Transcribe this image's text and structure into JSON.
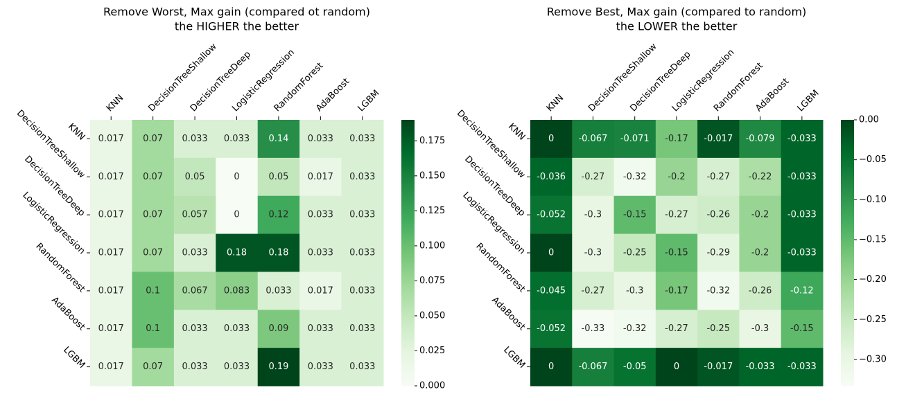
{
  "chart_data": [
    {
      "type": "heatmap",
      "title": "Remove Worst, Max gain (compared ot random)",
      "subtitle": "the HIGHER the better",
      "x_categories": [
        "KNN",
        "DecisionTreeShallow",
        "DecisionTreeDeep",
        "LogisticRegression",
        "RandomForest",
        "AdaBoost",
        "LGBM"
      ],
      "y_categories": [
        "KNN",
        "DecisionTreeShallow",
        "DecisionTreeDeep",
        "LogisticRegression",
        "RandomForest",
        "AdaBoost",
        "LGBM"
      ],
      "values": [
        [
          0.017,
          0.07,
          0.033,
          0.033,
          0.14,
          0.033,
          0.033
        ],
        [
          0.017,
          0.07,
          0.05,
          0,
          0.05,
          0.017,
          0.033
        ],
        [
          0.017,
          0.07,
          0.057,
          0,
          0.12,
          0.033,
          0.033
        ],
        [
          0.017,
          0.07,
          0.033,
          0.18,
          0.18,
          0.033,
          0.033
        ],
        [
          0.017,
          0.1,
          0.067,
          0.083,
          0.033,
          0.017,
          0.033
        ],
        [
          0.017,
          0.1,
          0.033,
          0.033,
          0.09,
          0.033,
          0.033
        ],
        [
          0.017,
          0.07,
          0.033,
          0.033,
          0.19,
          0.033,
          0.033
        ]
      ],
      "clim": [
        0,
        0.19
      ],
      "cticks": [
        {
          "value": 0,
          "label": "0.000"
        },
        {
          "value": 0.025,
          "label": "0.025"
        },
        {
          "value": 0.05,
          "label": "0.050"
        },
        {
          "value": 0.075,
          "label": "0.075"
        },
        {
          "value": 0.1,
          "label": "0.100"
        },
        {
          "value": 0.125,
          "label": "0.125"
        },
        {
          "value": 0.15,
          "label": "0.150"
        },
        {
          "value": 0.175,
          "label": "0.175"
        }
      ],
      "colormap": [
        "#f7fcf5",
        "#e5f5e0",
        "#c7e9c0",
        "#a1d99b",
        "#74c476",
        "#41ab5d",
        "#238b45",
        "#006d2c",
        "#00441b"
      ]
    },
    {
      "type": "heatmap",
      "title": "Remove Best, Max gain (compared to random)",
      "subtitle": "the LOWER the better",
      "x_categories": [
        "KNN",
        "DecisionTreeShallow",
        "DecisionTreeDeep",
        "LogisticRegression",
        "RandomForest",
        "AdaBoost",
        "LGBM"
      ],
      "y_categories": [
        "KNN",
        "DecisionTreeShallow",
        "DecisionTreeDeep",
        "LogisticRegression",
        "RandomForest",
        "AdaBoost",
        "LGBM"
      ],
      "values": [
        [
          0,
          -0.067,
          -0.071,
          -0.17,
          -0.017,
          -0.079,
          -0.033
        ],
        [
          -0.036,
          -0.27,
          -0.32,
          -0.2,
          -0.27,
          -0.22,
          -0.033
        ],
        [
          -0.052,
          -0.3,
          -0.15,
          -0.27,
          -0.26,
          -0.2,
          -0.033
        ],
        [
          0,
          -0.3,
          -0.25,
          -0.15,
          -0.29,
          -0.2,
          -0.033
        ],
        [
          -0.045,
          -0.27,
          -0.3,
          -0.17,
          -0.32,
          -0.26,
          -0.12
        ],
        [
          -0.052,
          -0.33,
          -0.32,
          -0.27,
          -0.25,
          -0.3,
          -0.15
        ],
        [
          0,
          -0.067,
          -0.05,
          0,
          -0.017,
          -0.033,
          -0.033
        ]
      ],
      "clim": [
        -0.333,
        0
      ],
      "cticks": [
        {
          "value": 0,
          "label": "0.00"
        },
        {
          "value": -0.05,
          "label": "−0.05"
        },
        {
          "value": -0.1,
          "label": "−0.10"
        },
        {
          "value": -0.15,
          "label": "−0.15"
        },
        {
          "value": -0.2,
          "label": "−0.20"
        },
        {
          "value": -0.25,
          "label": "−0.25"
        },
        {
          "value": -0.3,
          "label": "−0.30"
        }
      ],
      "colormap": [
        "#f7fcf5",
        "#e5f5e0",
        "#c7e9c0",
        "#a1d99b",
        "#74c476",
        "#41ab5d",
        "#238b45",
        "#006d2c",
        "#00441b"
      ]
    }
  ]
}
